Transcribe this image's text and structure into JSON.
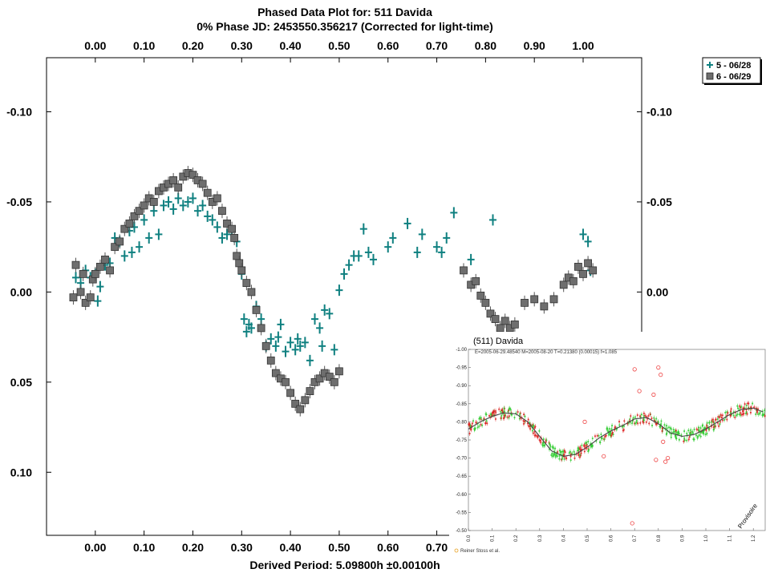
{
  "chart_data": [
    {
      "type": "scatter",
      "title": "Phased Data Plot for: 511 Davida",
      "subtitle": "0% Phase JD:  2453550.356217    (Corrected for light-time)",
      "xlabel": "Derived Period: 5.09800h  ±0.00100h",
      "xlim": [
        -0.1,
        1.12
      ],
      "ylim": [
        0.135,
        -0.13
      ],
      "y_inverted": true,
      "x_ticks": [
        "0.00",
        "0.10",
        "0.20",
        "0.30",
        "0.40",
        "0.50",
        "0.60",
        "0.70",
        "0.80",
        "0.90",
        "1.00"
      ],
      "x_tick_values": [
        0,
        0.1,
        0.2,
        0.3,
        0.4,
        0.5,
        0.6,
        0.7,
        0.8,
        0.9,
        1.0
      ],
      "y_ticks": [
        "-0.10",
        "-0.05",
        "0.00",
        "0.05",
        "0.10"
      ],
      "y_tick_values": [
        -0.1,
        -0.05,
        0.0,
        0.05,
        0.1
      ],
      "grid": false,
      "legend_position": "top-right",
      "series": [
        {
          "name": "5 - 06/28",
          "marker": "cross",
          "color": "#0f8080",
          "points": [
            [
              -0.04,
              -0.008
            ],
            [
              -0.03,
              -0.005
            ],
            [
              -0.02,
              -0.012
            ],
            [
              -0.01,
              -0.008
            ],
            [
              0.0,
              -0.01
            ],
            [
              0.005,
              0.005
            ],
            [
              0.01,
              -0.003
            ],
            [
              0.02,
              -0.015
            ],
            [
              0.03,
              -0.016
            ],
            [
              0.04,
              -0.03
            ],
            [
              0.05,
              -0.028
            ],
            [
              0.06,
              -0.02
            ],
            [
              0.07,
              -0.034
            ],
            [
              0.075,
              -0.022
            ],
            [
              0.08,
              -0.036
            ],
            [
              0.09,
              -0.025
            ],
            [
              0.1,
              -0.04
            ],
            [
              0.11,
              -0.03
            ],
            [
              0.12,
              -0.045
            ],
            [
              0.13,
              -0.032
            ],
            [
              0.14,
              -0.048
            ],
            [
              0.15,
              -0.05
            ],
            [
              0.16,
              -0.046
            ],
            [
              0.17,
              -0.052
            ],
            [
              0.18,
              -0.048
            ],
            [
              0.19,
              -0.05
            ],
            [
              0.2,
              -0.052
            ],
            [
              0.21,
              -0.045
            ],
            [
              0.22,
              -0.048
            ],
            [
              0.23,
              -0.042
            ],
            [
              0.24,
              -0.04
            ],
            [
              0.25,
              -0.036
            ],
            [
              0.26,
              -0.03
            ],
            [
              0.27,
              -0.032
            ],
            [
              0.28,
              -0.034
            ],
            [
              0.29,
              -0.028
            ],
            [
              0.3,
              -0.01
            ],
            [
              0.305,
              0.015
            ],
            [
              0.31,
              0.022
            ],
            [
              0.315,
              0.018
            ],
            [
              0.32,
              0.02
            ],
            [
              0.33,
              0.008
            ],
            [
              0.34,
              0.015
            ],
            [
              0.35,
              0.03
            ],
            [
              0.36,
              0.026
            ],
            [
              0.37,
              0.03
            ],
            [
              0.375,
              0.025
            ],
            [
              0.38,
              0.018
            ],
            [
              0.39,
              0.033
            ],
            [
              0.4,
              0.028
            ],
            [
              0.41,
              0.032
            ],
            [
              0.415,
              0.026
            ],
            [
              0.42,
              0.03
            ],
            [
              0.43,
              0.028
            ],
            [
              0.44,
              0.038
            ],
            [
              0.45,
              0.015
            ],
            [
              0.46,
              0.02
            ],
            [
              0.465,
              0.03
            ],
            [
              0.47,
              0.01
            ],
            [
              0.48,
              0.012
            ],
            [
              0.49,
              0.032
            ],
            [
              0.5,
              -0.001
            ],
            [
              0.51,
              -0.01
            ],
            [
              0.52,
              -0.015
            ],
            [
              0.53,
              -0.02
            ],
            [
              0.54,
              -0.02
            ],
            [
              0.55,
              -0.035
            ],
            [
              0.56,
              -0.022
            ],
            [
              0.57,
              -0.018
            ],
            [
              0.6,
              -0.025
            ],
            [
              0.61,
              -0.03
            ],
            [
              0.64,
              -0.038
            ],
            [
              0.66,
              -0.022
            ],
            [
              0.67,
              -0.032
            ],
            [
              0.7,
              -0.025
            ],
            [
              0.71,
              -0.022
            ],
            [
              0.72,
              -0.03
            ],
            [
              0.735,
              -0.044
            ],
            [
              0.77,
              -0.018
            ],
            [
              0.815,
              -0.04
            ],
            [
              1.0,
              -0.032
            ],
            [
              1.01,
              -0.028
            ],
            [
              1.015,
              -0.012
            ]
          ]
        },
        {
          "name": "6 - 06/29",
          "marker": "square",
          "color": "#6e6e6e",
          "points": [
            [
              -0.045,
              0.003
            ],
            [
              -0.04,
              -0.015
            ],
            [
              -0.03,
              0.0
            ],
            [
              -0.025,
              -0.01
            ],
            [
              -0.02,
              0.006
            ],
            [
              -0.01,
              0.003
            ],
            [
              -0.005,
              -0.007
            ],
            [
              0.0,
              -0.01
            ],
            [
              0.01,
              -0.014
            ],
            [
              0.02,
              -0.018
            ],
            [
              0.03,
              -0.012
            ],
            [
              0.04,
              -0.025
            ],
            [
              0.05,
              -0.028
            ],
            [
              0.06,
              -0.035
            ],
            [
              0.07,
              -0.038
            ],
            [
              0.08,
              -0.042
            ],
            [
              0.09,
              -0.045
            ],
            [
              0.1,
              -0.048
            ],
            [
              0.11,
              -0.052
            ],
            [
              0.12,
              -0.05
            ],
            [
              0.13,
              -0.056
            ],
            [
              0.14,
              -0.058
            ],
            [
              0.15,
              -0.06
            ],
            [
              0.16,
              -0.062
            ],
            [
              0.17,
              -0.058
            ],
            [
              0.18,
              -0.064
            ],
            [
              0.19,
              -0.066
            ],
            [
              0.2,
              -0.065
            ],
            [
              0.21,
              -0.062
            ],
            [
              0.22,
              -0.06
            ],
            [
              0.23,
              -0.055
            ],
            [
              0.24,
              -0.05
            ],
            [
              0.25,
              -0.052
            ],
            [
              0.26,
              -0.045
            ],
            [
              0.27,
              -0.038
            ],
            [
              0.28,
              -0.035
            ],
            [
              0.285,
              -0.03
            ],
            [
              0.29,
              -0.02
            ],
            [
              0.295,
              -0.016
            ],
            [
              0.3,
              -0.012
            ],
            [
              0.31,
              -0.005
            ],
            [
              0.32,
              0.0
            ],
            [
              0.33,
              0.01
            ],
            [
              0.34,
              0.02
            ],
            [
              0.35,
              0.03
            ],
            [
              0.36,
              0.038
            ],
            [
              0.37,
              0.045
            ],
            [
              0.38,
              0.048
            ],
            [
              0.39,
              0.05
            ],
            [
              0.4,
              0.056
            ],
            [
              0.41,
              0.062
            ],
            [
              0.42,
              0.065
            ],
            [
              0.43,
              0.06
            ],
            [
              0.44,
              0.055
            ],
            [
              0.45,
              0.05
            ],
            [
              0.46,
              0.048
            ],
            [
              0.47,
              0.045
            ],
            [
              0.48,
              0.047
            ],
            [
              0.49,
              0.05
            ],
            [
              0.5,
              0.044
            ],
            [
              0.755,
              -0.012
            ],
            [
              0.77,
              -0.004
            ],
            [
              0.78,
              -0.006
            ],
            [
              0.79,
              0.002
            ],
            [
              0.8,
              0.006
            ],
            [
              0.81,
              0.012
            ],
            [
              0.82,
              0.015
            ],
            [
              0.83,
              0.02
            ],
            [
              0.84,
              0.016
            ],
            [
              0.85,
              0.02
            ],
            [
              0.86,
              0.018
            ],
            [
              0.88,
              0.006
            ],
            [
              0.9,
              0.004
            ],
            [
              0.92,
              0.008
            ],
            [
              0.94,
              0.004
            ],
            [
              0.96,
              -0.004
            ],
            [
              0.97,
              -0.008
            ],
            [
              0.98,
              -0.006
            ],
            [
              0.99,
              -0.014
            ],
            [
              1.0,
              -0.01
            ],
            [
              1.01,
              -0.016
            ],
            [
              1.02,
              -0.012
            ]
          ]
        }
      ]
    },
    {
      "type": "scatter",
      "title": "(511) Davida",
      "subtitle": "E=2005-06-29.48540     M=2005-08-20     T=0.21380 (0.00015)     f=1.085",
      "xlim": [
        0,
        1.25
      ],
      "ylim": [
        -1.0,
        -0.5
      ],
      "x_ticks": [
        "0.0",
        "0.1",
        "0.2",
        "0.3",
        "0.4",
        "0.5",
        "0.6",
        "0.7",
        "0.8",
        "0.9",
        "1.0",
        "1.1",
        "1.2"
      ],
      "x_tick_values": [
        0,
        0.1,
        0.2,
        0.3,
        0.4,
        0.5,
        0.6,
        0.7,
        0.8,
        0.9,
        1.0,
        1.1,
        1.2
      ],
      "y_ticks": [
        "-1.00",
        "-0.95",
        "-0.90",
        "-0.85",
        "-0.80",
        "-0.75",
        "-0.70",
        "-0.65",
        "-0.60",
        "-0.55",
        "-0.50"
      ],
      "y_tick_values": [
        -1.0,
        -0.95,
        -0.9,
        -0.85,
        -0.8,
        -0.75,
        -0.7,
        -0.65,
        -0.6,
        -0.55,
        -0.5
      ],
      "grid": false,
      "annotation": "Provisoire",
      "footer": "Reiner Stoss et al.",
      "series": [
        {
          "marker": "line",
          "color": "#444444",
          "x": [
            0,
            0.05,
            0.1,
            0.15,
            0.2,
            0.25,
            0.3,
            0.35,
            0.4,
            0.45,
            0.5,
            0.55,
            0.6,
            0.65,
            0.7,
            0.75,
            0.8,
            0.85,
            0.9,
            0.95,
            1.0,
            1.05,
            1.1,
            1.15,
            1.2,
            1.25
          ],
          "values": [
            -0.78,
            -0.8,
            -0.815,
            -0.825,
            -0.822,
            -0.8,
            -0.76,
            -0.72,
            -0.705,
            -0.71,
            -0.73,
            -0.755,
            -0.775,
            -0.79,
            -0.808,
            -0.812,
            -0.795,
            -0.77,
            -0.76,
            -0.765,
            -0.78,
            -0.8,
            -0.82,
            -0.834,
            -0.838,
            -0.825
          ]
        },
        {
          "marker": "point",
          "color": "#33cc33"
        },
        {
          "marker": "point",
          "color": "#dd2222"
        },
        {
          "marker": "circle",
          "color": "#ee4444",
          "x": [
            0.49,
            0.5,
            0.57,
            0.69,
            0.7,
            0.72,
            0.78,
            0.79,
            0.8,
            0.81,
            0.82,
            0.83,
            0.84
          ],
          "values": [
            -0.8,
            -0.73,
            -0.705,
            -0.52,
            -0.945,
            -0.885,
            -0.875,
            -0.695,
            -0.95,
            -0.93,
            -0.745,
            -0.69,
            -0.7
          ]
        }
      ]
    }
  ],
  "legend": {
    "items": [
      {
        "label": "5 - 06/28",
        "marker": "cross",
        "color": "#0f8080"
      },
      {
        "label": "6 - 06/29",
        "marker": "square",
        "color": "#6e6e6e"
      }
    ]
  }
}
